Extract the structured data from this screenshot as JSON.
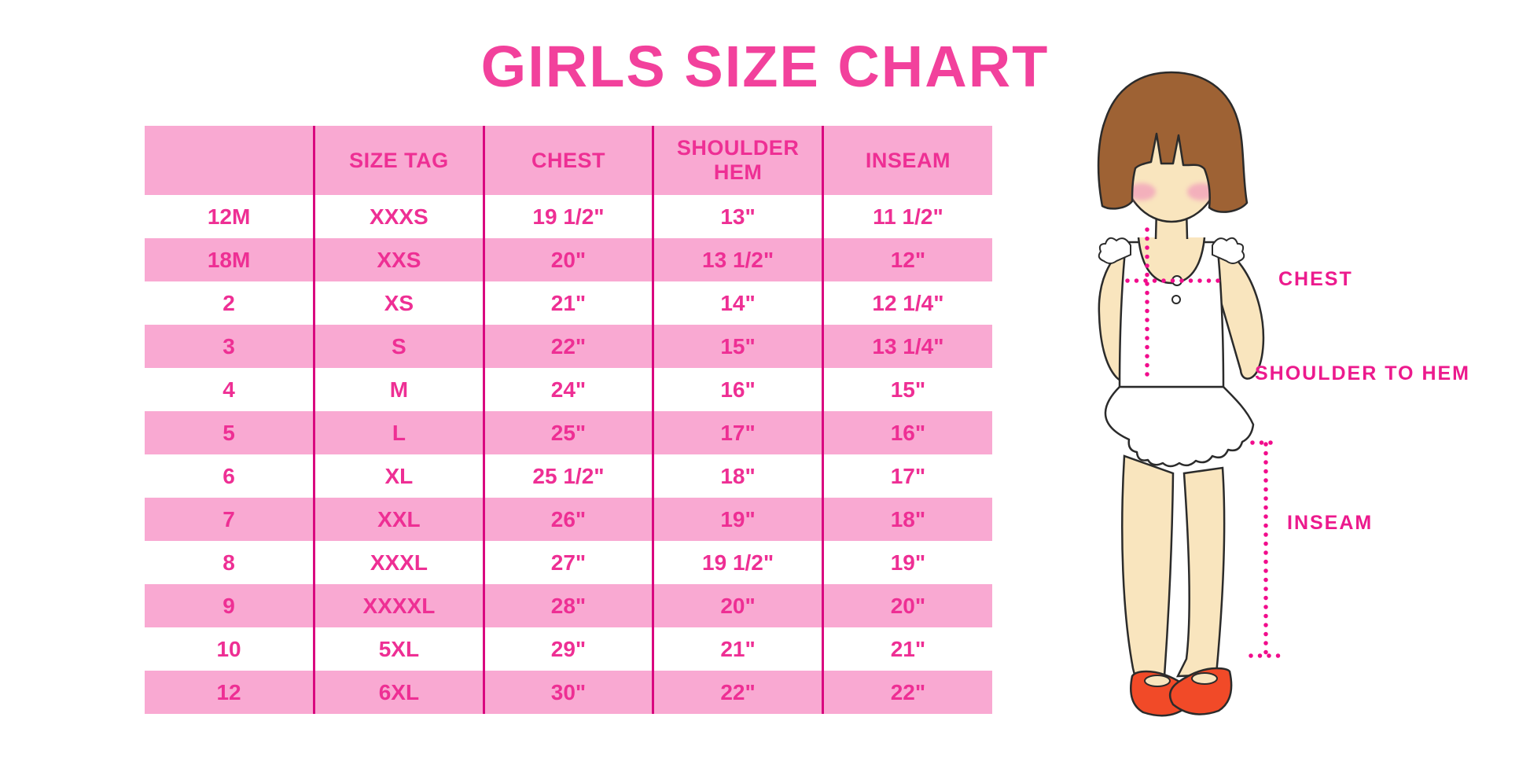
{
  "title": "GIRLS SIZE CHART",
  "chart_data": {
    "type": "table",
    "title": "GIRLS SIZE CHART",
    "columns": [
      "",
      "SIZE TAG",
      "CHEST",
      "SHOULDER HEM",
      "INSEAM"
    ],
    "rows": [
      [
        "12M",
        "XXXS",
        "19 1/2\"",
        "13\"",
        "11 1/2\""
      ],
      [
        "18M",
        "XXS",
        "20\"",
        "13 1/2\"",
        "12\""
      ],
      [
        "2",
        "XS",
        "21\"",
        "14\"",
        "12 1/4\""
      ],
      [
        "3",
        "S",
        "22\"",
        "15\"",
        "13 1/4\""
      ],
      [
        "4",
        "M",
        "24\"",
        "16\"",
        "15\""
      ],
      [
        "5",
        "L",
        "25\"",
        "17\"",
        "16\""
      ],
      [
        "6",
        "XL",
        "25 1/2\"",
        "18\"",
        "17\""
      ],
      [
        "7",
        "XXL",
        "26\"",
        "19\"",
        "18\""
      ],
      [
        "8",
        "XXXL",
        "27\"",
        "19 1/2\"",
        "19\""
      ],
      [
        "9",
        "XXXXL",
        "28\"",
        "20\"",
        "20\""
      ],
      [
        "10",
        "5XL",
        "29\"",
        "21\"",
        "21\""
      ],
      [
        "12",
        "6XL",
        "30\"",
        "22\"",
        "22\""
      ]
    ],
    "layout": {
      "row_striping": "header and even data rows pink, odd data rows white",
      "column_dividers": "vertical magenta lines between columns only"
    }
  },
  "diagram": {
    "labels": {
      "chest": "CHEST",
      "shoulder_to_hem": "SHOULDER TO HEM",
      "inseam": "INSEAM"
    }
  },
  "colors": {
    "title_pink": "#f2419c",
    "table_text_magenta": "#ee2f94",
    "divider_magenta": "#d9077f",
    "row_pink": "#f9a9d2",
    "dotted_line_magenta": "#f10c8c",
    "label_magenta": "#ec1a8d",
    "skin": "#f9e5be",
    "hair_brown": "#9e6234",
    "shoe_red": "#f14a28"
  }
}
